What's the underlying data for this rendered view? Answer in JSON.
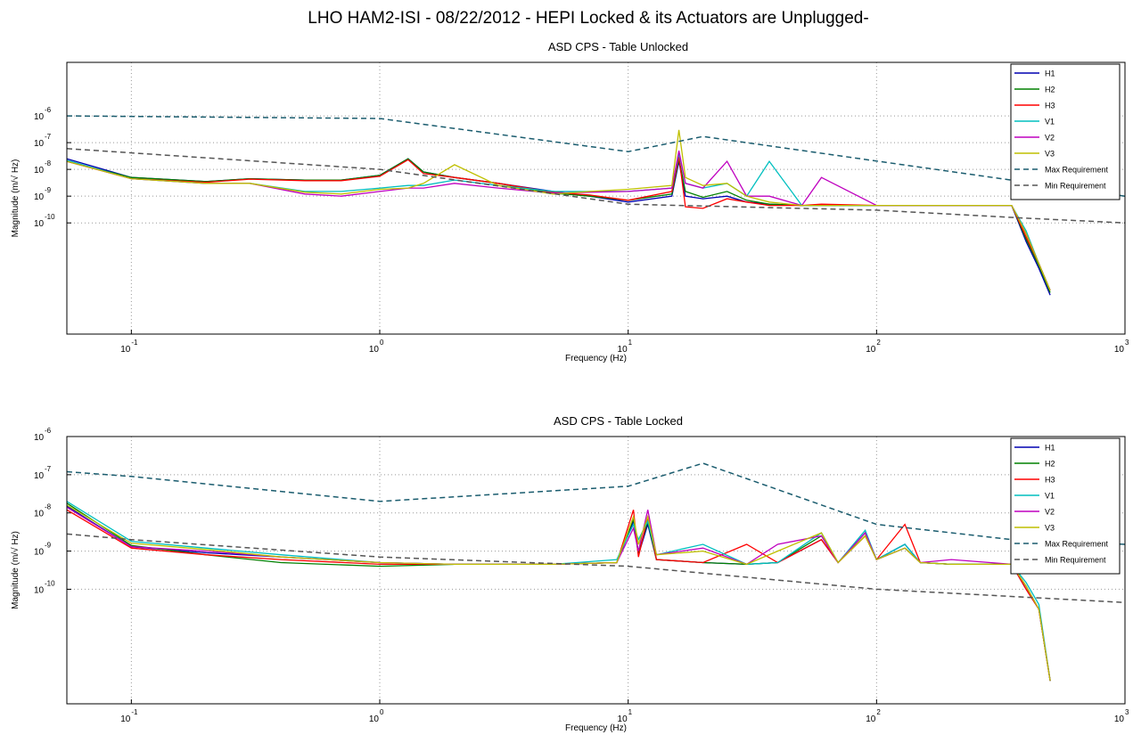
{
  "title": "LHO HAM2-ISI - 08/22/2012 - HEPI Locked & its Actuators are Unplugged-",
  "chart_data": [
    {
      "type": "line",
      "title": "ASD CPS - Table Unlocked",
      "xlabel": "Frequency (Hz)",
      "ylabel": "Magnitude (m/√ Hz)",
      "xscale": "log",
      "yscale": "log",
      "grid": true,
      "legend": "upper right",
      "xlim": [
        0.055,
        1000
      ],
      "ylim": [
        7e-15,
        0.0001
      ],
      "xticks": [
        {
          "value": 0.1,
          "label": "10",
          "exponent": "-1"
        },
        {
          "value": 1,
          "label": "10",
          "exponent": "0"
        },
        {
          "value": 10,
          "label": "10",
          "exponent": "1"
        },
        {
          "value": 100,
          "label": "10",
          "exponent": "2"
        },
        {
          "value": 1000,
          "label": "10",
          "exponent": "3"
        }
      ],
      "yticks": [
        {
          "value": 1e-06,
          "label": "10",
          "exponent": "-6"
        },
        {
          "value": 1e-07,
          "label": "10",
          "exponent": "-7"
        },
        {
          "value": 1e-08,
          "label": "10",
          "exponent": "-8"
        },
        {
          "value": 1e-09,
          "label": "10",
          "exponent": "-9"
        },
        {
          "value": 1e-10,
          "label": "10",
          "exponent": "-10"
        }
      ],
      "x": [
        0.055,
        0.1,
        0.2,
        0.3,
        0.5,
        0.7,
        1,
        1.3,
        1.5,
        2,
        3,
        5,
        7,
        10,
        15,
        16,
        17,
        20,
        25,
        30,
        37,
        50,
        60,
        100,
        200,
        350,
        400,
        450,
        500
      ],
      "series": [
        {
          "name": "H1",
          "color": "#0000b0",
          "values": [
            2.5e-08,
            5e-09,
            3.5e-09,
            4.5e-09,
            4e-09,
            4e-09,
            6e-09,
            2.5e-08,
            8e-09,
            5e-09,
            3e-09,
            1.5e-09,
            1e-09,
            6e-10,
            1e-09,
            2e-08,
            1e-09,
            8e-10,
            1e-09,
            6e-10,
            5e-10,
            4.5e-10,
            4.5e-10,
            4.5e-10,
            4.5e-10,
            4.5e-10,
            2e-11,
            2e-12,
            2e-13
          ]
        },
        {
          "name": "H2",
          "color": "#008000",
          "values": [
            2e-08,
            5e-09,
            3.5e-09,
            4.5e-09,
            4e-09,
            4e-09,
            6e-09,
            2.5e-08,
            8e-09,
            5e-09,
            3e-09,
            1.3e-09,
            1e-09,
            7e-10,
            1.2e-09,
            2.5e-08,
            1.5e-09,
            9e-10,
            1.5e-09,
            7e-10,
            5e-10,
            4.5e-10,
            4.5e-10,
            4.5e-10,
            4.5e-10,
            4.5e-10,
            2.5e-11,
            2.5e-12,
            2.5e-13
          ]
        },
        {
          "name": "H3",
          "color": "#ff0000",
          "values": [
            2e-08,
            4.5e-09,
            3.3e-09,
            4.3e-09,
            3.8e-09,
            3.8e-09,
            5.5e-09,
            2.3e-08,
            7e-09,
            5e-09,
            3e-09,
            1.4e-09,
            1.1e-09,
            7e-10,
            1.5e-09,
            3e-08,
            4e-10,
            3.5e-10,
            8e-10,
            6e-10,
            4.5e-10,
            4.5e-10,
            5e-10,
            4.5e-10,
            4.5e-10,
            4.5e-10,
            3e-11,
            3e-12,
            3e-13
          ]
        },
        {
          "name": "V1",
          "color": "#00bfbf",
          "values": [
            2.2e-08,
            4.5e-09,
            3e-09,
            3e-09,
            1.5e-09,
            1.5e-09,
            2e-09,
            2.5e-09,
            2.5e-09,
            4e-09,
            2.5e-09,
            1.5e-09,
            1.5e-09,
            1.5e-09,
            2e-09,
            4e-08,
            3e-09,
            2e-09,
            3e-09,
            1e-09,
            2e-08,
            4.5e-10,
            4.5e-10,
            4.5e-10,
            4.5e-10,
            4.5e-10,
            5e-11,
            3e-12,
            3e-13
          ]
        },
        {
          "name": "V2",
          "color": "#bf00bf",
          "values": [
            2e-08,
            4.5e-09,
            3e-09,
            3e-09,
            1.2e-09,
            1e-09,
            1.5e-09,
            2e-09,
            2e-09,
            3e-09,
            2e-09,
            1.3e-09,
            1.4e-09,
            1.5e-09,
            2e-09,
            5e-08,
            3e-09,
            2e-09,
            2e-08,
            1e-09,
            1e-09,
            4.5e-10,
            5e-09,
            4.5e-10,
            4.5e-10,
            4.5e-10,
            4e-11,
            3e-12,
            3e-13
          ]
        },
        {
          "name": "V3",
          "color": "#bfbf00",
          "values": [
            2e-08,
            4.5e-09,
            3e-09,
            3e-09,
            1.4e-09,
            1.2e-09,
            1.8e-09,
            2e-09,
            3e-09,
            1.5e-08,
            2.5e-09,
            1.2e-09,
            1.5e-09,
            1.8e-09,
            2.5e-09,
            3e-07,
            5e-09,
            2.5e-09,
            3e-09,
            1e-09,
            6e-10,
            4.5e-10,
            4.5e-10,
            4.5e-10,
            4.5e-10,
            4.5e-10,
            4e-11,
            3e-12,
            3e-13
          ]
        },
        {
          "name": "Max Requirement",
          "color": "#1a5c6e",
          "dash": true,
          "x": [
            0.055,
            1,
            10,
            20,
            1000
          ],
          "values": [
            1e-06,
            8e-07,
            4.6e-08,
            1.7e-07,
            1e-09
          ]
        },
        {
          "name": "Min Requirement",
          "color": "#555555",
          "dash": true,
          "x": [
            0.055,
            1,
            10,
            100,
            400,
            1000
          ],
          "values": [
            6e-08,
            1e-08,
            5e-10,
            3e-10,
            1.5e-10,
            1e-10
          ]
        }
      ]
    },
    {
      "type": "line",
      "title": "ASD CPS - Table Locked",
      "xlabel": "Frequency (Hz)",
      "ylabel": "Magnitude (m/√ Hz)",
      "xscale": "log",
      "yscale": "log",
      "grid": true,
      "legend": "upper right",
      "xlim": [
        0.055,
        1000
      ],
      "ylim": [
        1e-13,
        1e-06
      ],
      "xticks": [
        {
          "value": 0.1,
          "label": "10",
          "exponent": "-1"
        },
        {
          "value": 1,
          "label": "10",
          "exponent": "0"
        },
        {
          "value": 10,
          "label": "10",
          "exponent": "1"
        },
        {
          "value": 100,
          "label": "10",
          "exponent": "2"
        },
        {
          "value": 1000,
          "label": "10",
          "exponent": "3"
        }
      ],
      "yticks": [
        {
          "value": 1e-06,
          "label": "10",
          "exponent": "-6"
        },
        {
          "value": 1e-07,
          "label": "10",
          "exponent": "-7"
        },
        {
          "value": 1e-08,
          "label": "10",
          "exponent": "-8"
        },
        {
          "value": 1e-09,
          "label": "10",
          "exponent": "-9"
        },
        {
          "value": 1e-10,
          "label": "10",
          "exponent": "-10"
        }
      ],
      "x": [
        0.055,
        0.1,
        0.2,
        0.4,
        1,
        2,
        5,
        9,
        10.5,
        11,
        12,
        13,
        20,
        30,
        40,
        60,
        70,
        90,
        100,
        130,
        150,
        200,
        350,
        400,
        450,
        500
      ],
      "series": [
        {
          "name": "H1",
          "color": "#0000b0",
          "values": [
            1.5e-08,
            1.3e-09,
            9e-10,
            7e-10,
            5e-10,
            4.5e-10,
            4.5e-10,
            5e-10,
            6e-09,
            8e-10,
            5e-09,
            6e-10,
            5e-10,
            4.5e-10,
            5e-10,
            2e-09,
            5e-10,
            3e-09,
            6e-10,
            1.5e-09,
            5e-10,
            4.5e-10,
            4.5e-10,
            1e-10,
            3e-11,
            4e-13
          ]
        },
        {
          "name": "H2",
          "color": "#008000",
          "values": [
            1.8e-08,
            1.4e-09,
            8e-10,
            5e-10,
            4e-10,
            4.5e-10,
            4.5e-10,
            5e-10,
            7e-09,
            9e-10,
            6e-09,
            6e-10,
            5e-10,
            4.5e-10,
            5e-10,
            2.5e-09,
            5e-10,
            2.5e-09,
            6e-10,
            1.2e-09,
            5e-10,
            4.5e-10,
            4.5e-10,
            1.2e-10,
            3e-11,
            4e-13
          ]
        },
        {
          "name": "H3",
          "color": "#ff0000",
          "values": [
            1.2e-08,
            1.2e-09,
            8e-10,
            6e-10,
            4.5e-10,
            4.5e-10,
            4.5e-10,
            5e-10,
            1.2e-08,
            7e-10,
            8e-09,
            6e-10,
            5e-10,
            1.5e-09,
            5e-10,
            2e-09,
            5e-10,
            2.5e-09,
            6e-10,
            5e-09,
            5e-10,
            4.5e-10,
            4.5e-10,
            1e-10,
            3e-11,
            4e-13
          ]
        },
        {
          "name": "V1",
          "color": "#00bfbf",
          "values": [
            2e-08,
            1.8e-09,
            1.2e-09,
            8e-10,
            5e-10,
            4.5e-10,
            4.5e-10,
            6e-10,
            5e-09,
            2e-09,
            6e-09,
            8e-10,
            1.5e-09,
            4.5e-10,
            5e-10,
            3e-09,
            5e-10,
            3.5e-09,
            6e-10,
            1.5e-09,
            5e-10,
            4.5e-10,
            4.5e-10,
            1.5e-10,
            4e-11,
            4e-13
          ]
        },
        {
          "name": "V2",
          "color": "#bf00bf",
          "values": [
            1.4e-08,
            1.3e-09,
            1e-09,
            7e-10,
            5e-10,
            4.5e-10,
            4.5e-10,
            5e-10,
            4e-09,
            1e-09,
            1.2e-08,
            8e-10,
            1.2e-09,
            4.5e-10,
            1.5e-09,
            2.5e-09,
            5e-10,
            3e-09,
            6e-10,
            1.2e-09,
            5e-10,
            6e-10,
            4.5e-10,
            1.2e-10,
            3e-11,
            4e-13
          ]
        },
        {
          "name": "V3",
          "color": "#bfbf00",
          "values": [
            1.6e-08,
            1.6e-09,
            1.1e-09,
            7e-10,
            5e-10,
            4.5e-10,
            4.5e-10,
            5e-10,
            8e-09,
            1.5e-09,
            8e-09,
            8e-10,
            1e-09,
            4.5e-10,
            1e-09,
            3e-09,
            5e-10,
            2.5e-09,
            6e-10,
            1.2e-09,
            5e-10,
            4.5e-10,
            4.5e-10,
            1.2e-10,
            3e-11,
            4e-13
          ]
        },
        {
          "name": "Max Requirement",
          "color": "#1a5c6e",
          "dash": true,
          "x": [
            0.055,
            0.1,
            1,
            10,
            20,
            100,
            350,
            1000
          ],
          "values": [
            1.2e-07,
            9e-08,
            2e-08,
            5e-08,
            2e-07,
            5e-09,
            2e-09,
            1.5e-09
          ]
        },
        {
          "name": "Min Requirement",
          "color": "#555555",
          "dash": true,
          "x": [
            0.055,
            0.1,
            1,
            10,
            100,
            1000
          ],
          "values": [
            2.8e-09,
            2e-09,
            7e-10,
            4e-10,
            1e-10,
            4.5e-11
          ]
        }
      ]
    }
  ]
}
